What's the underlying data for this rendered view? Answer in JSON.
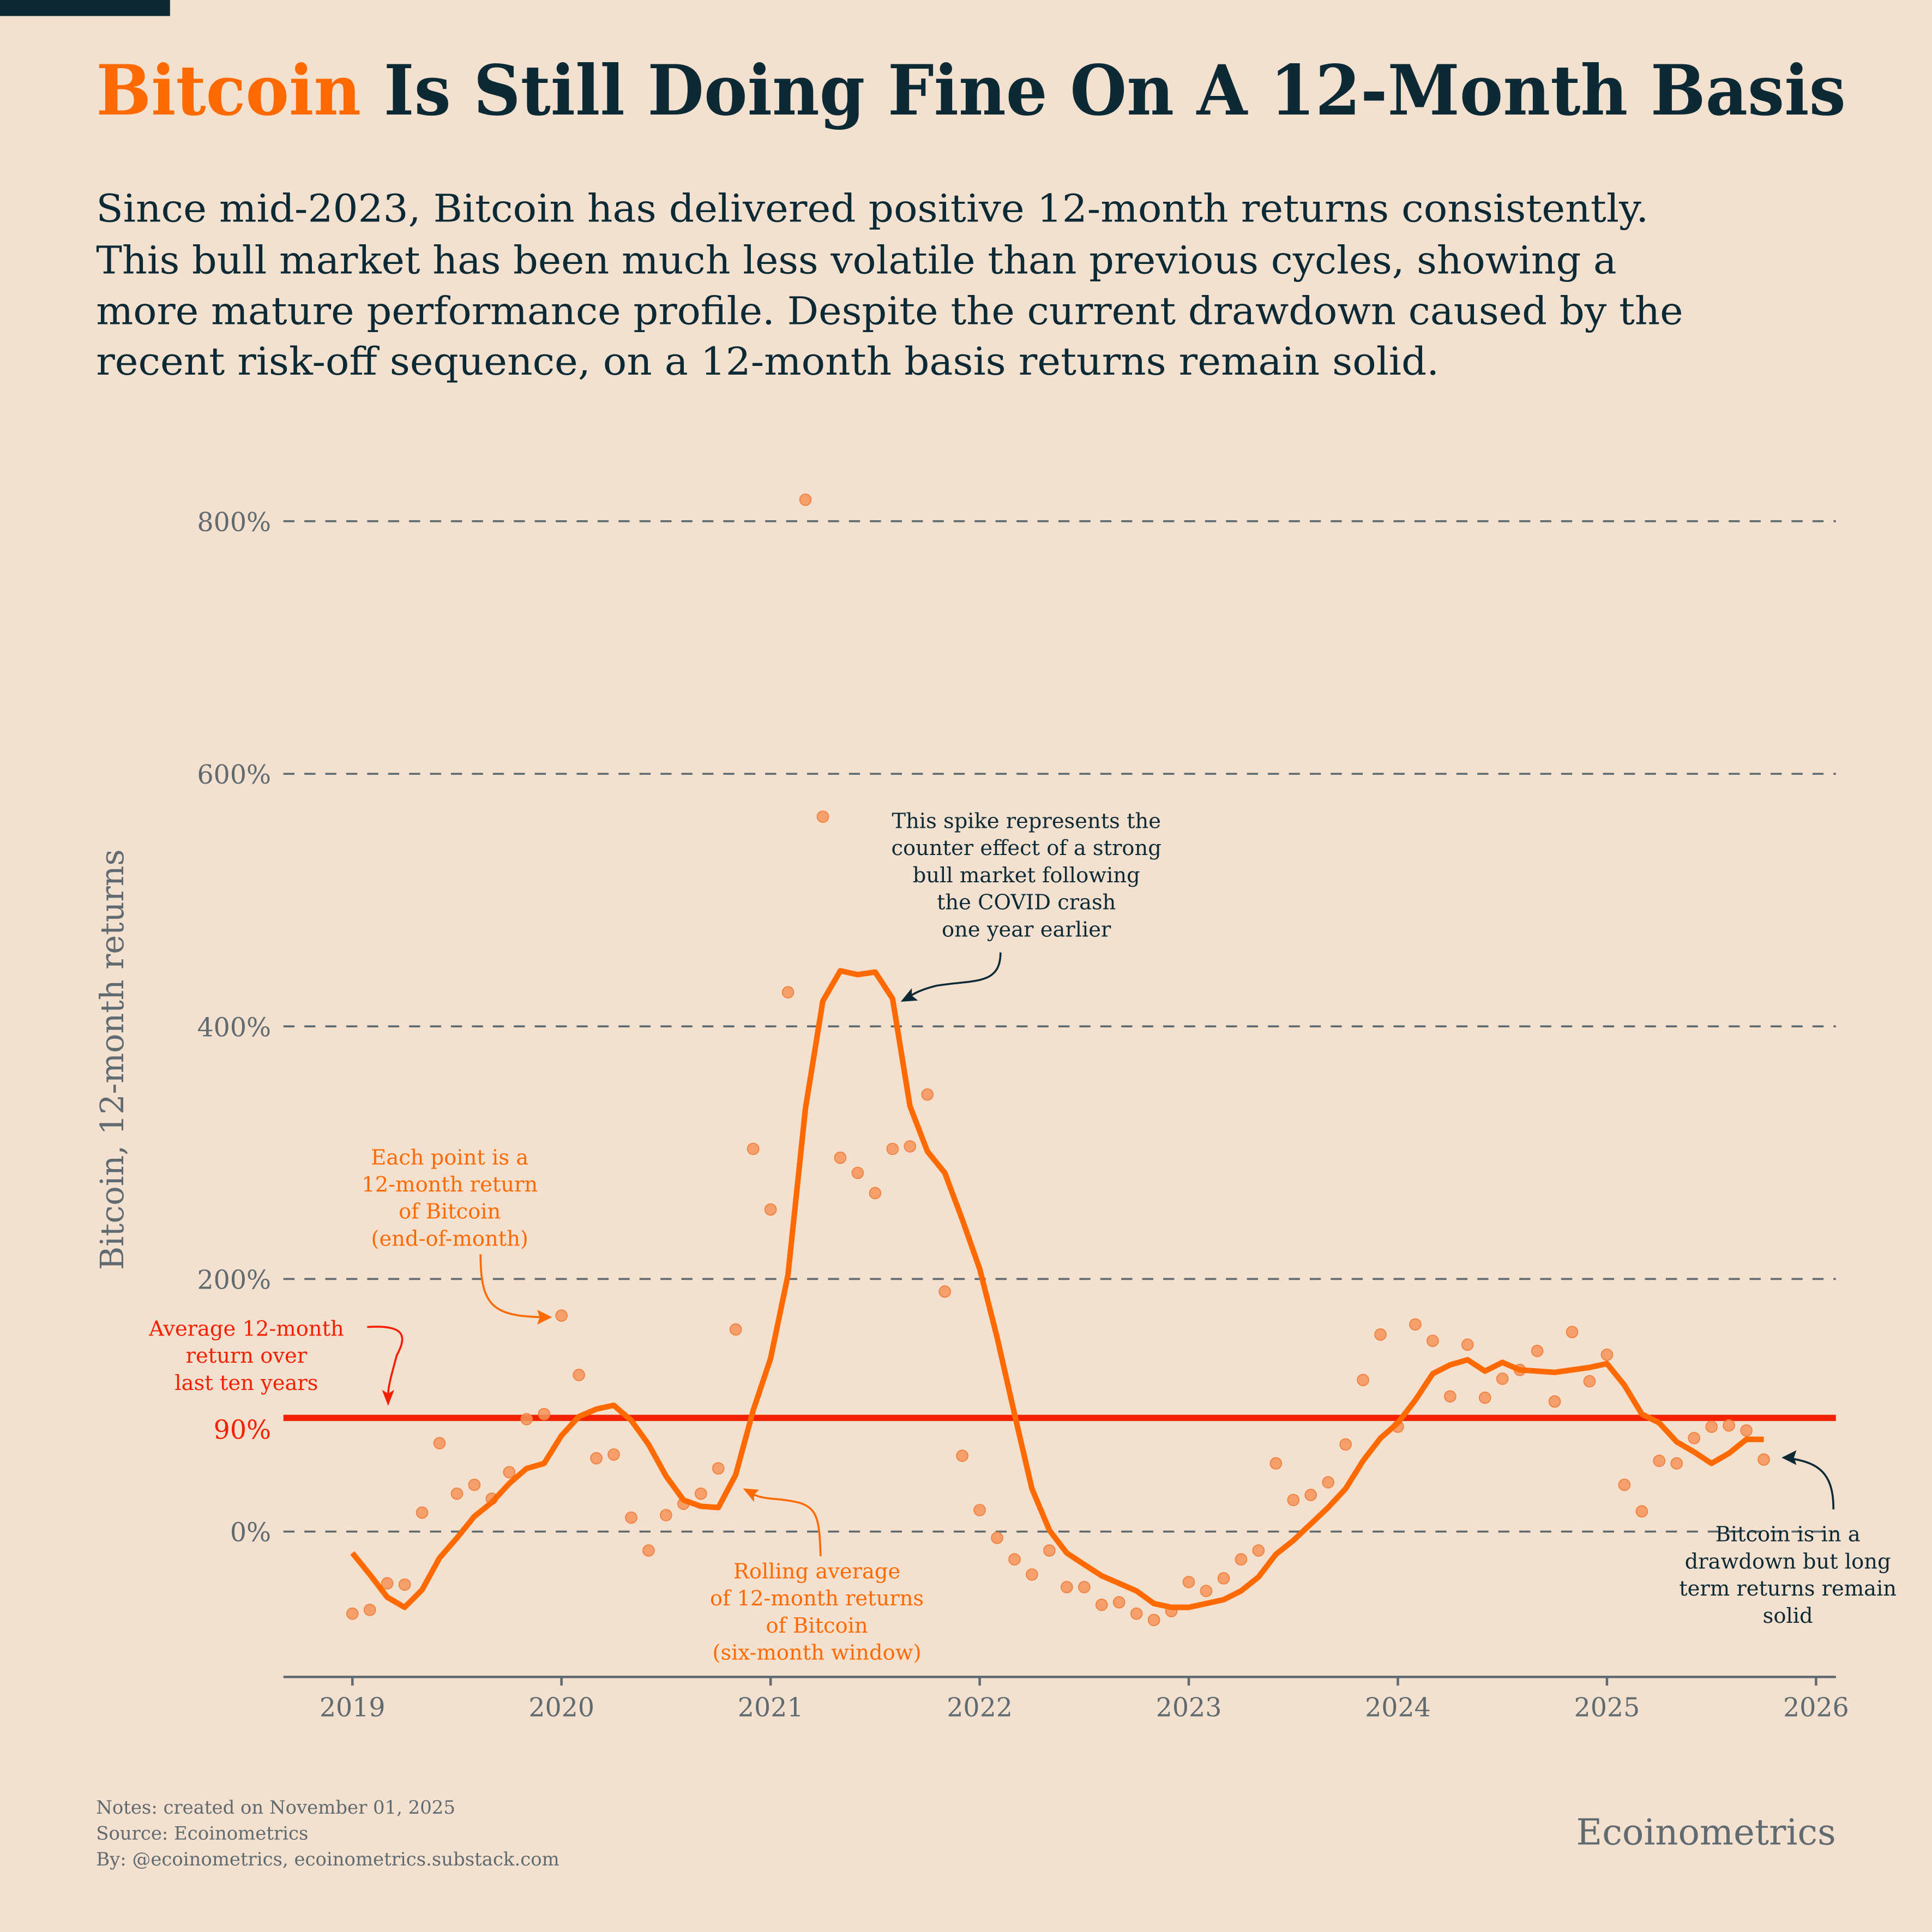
{
  "title": {
    "highlight": "Bitcoin",
    "rest": " Is Still Doing Fine On A 12-Month Basis"
  },
  "subtitle": [
    "Since mid-2023, Bitcoin has delivered positive 12-month returns consistently.",
    "This bull market has been much less volatile than previous cycles, showing a",
    "more mature performance profile. Despite the current drawdown caused by the",
    "recent risk-off sequence, on a 12-month basis returns remain solid."
  ],
  "footer": {
    "notes": "Notes: created on November 01, 2025",
    "source": "Source: Ecoinometrics",
    "by": "By: @ecoinometrics, ecoinometrics.substack.com",
    "brand": "Ecoinometrics"
  },
  "colors": {
    "background": "#f3e0cf",
    "title": "#0b2a35",
    "accent": "#ff6a00",
    "average": "#f52000",
    "points": "#f59458",
    "grid": "#5f6b70"
  },
  "annotations": {
    "points": [
      "Each point is a",
      "12-month return",
      "of Bitcoin",
      "(end-of-month)"
    ],
    "average": [
      "Average 12-month",
      "return over",
      "last ten years"
    ],
    "spike": [
      "This spike represents the",
      "counter effect of a strong",
      "bull market following",
      "the COVID crash",
      "one year earlier"
    ],
    "rolling": [
      "Rolling average",
      "of 12-month returns",
      "of Bitcoin",
      "(six-month window)"
    ],
    "drawdown": [
      "Bitcoin is in a",
      "drawdown but long",
      "term returns remain",
      "solid"
    ]
  },
  "chart_data": {
    "type": "scatter",
    "ylabel": "Bitcoin, 12-month returns",
    "xlabel": "",
    "ylim": [
      -100,
      800
    ],
    "xlim": [
      "2018-09",
      "2026-01"
    ],
    "yticks": [
      0,
      200,
      400,
      600,
      800
    ],
    "ytick_labels": [
      "0%",
      "200%",
      "400%",
      "600%",
      "800%"
    ],
    "xticks": [
      "2019",
      "2020",
      "2021",
      "2022",
      "2023",
      "2024",
      "2025",
      "2026"
    ],
    "grid": true,
    "average": {
      "value": 90,
      "label": "90%"
    },
    "months": [
      "2019-01",
      "2019-02",
      "2019-03",
      "2019-04",
      "2019-05",
      "2019-06",
      "2019-07",
      "2019-08",
      "2019-09",
      "2019-10",
      "2019-11",
      "2019-12",
      "2020-01",
      "2020-02",
      "2020-03",
      "2020-04",
      "2020-05",
      "2020-06",
      "2020-07",
      "2020-08",
      "2020-09",
      "2020-10",
      "2020-11",
      "2020-12",
      "2021-01",
      "2021-02",
      "2021-03",
      "2021-04",
      "2021-05",
      "2021-06",
      "2021-07",
      "2021-08",
      "2021-09",
      "2021-10",
      "2021-11",
      "2021-12",
      "2022-01",
      "2022-02",
      "2022-03",
      "2022-04",
      "2022-05",
      "2022-06",
      "2022-07",
      "2022-08",
      "2022-09",
      "2022-10",
      "2022-11",
      "2022-12",
      "2023-01",
      "2023-02",
      "2023-03",
      "2023-04",
      "2023-05",
      "2023-06",
      "2023-07",
      "2023-08",
      "2023-09",
      "2023-10",
      "2023-11",
      "2023-12",
      "2024-01",
      "2024-02",
      "2024-03",
      "2024-04",
      "2024-05",
      "2024-06",
      "2024-07",
      "2024-08",
      "2024-09",
      "2024-10",
      "2024-11",
      "2024-12",
      "2025-01",
      "2025-02",
      "2025-03",
      "2025-04",
      "2025-05",
      "2025-06",
      "2025-07",
      "2025-08",
      "2025-09",
      "2025-10"
    ],
    "series": [
      {
        "type": "scatter",
        "values": [
          -65,
          -62,
          -41,
          -42,
          15,
          70,
          30,
          37,
          26,
          47,
          89,
          93,
          171,
          124,
          58,
          61,
          11,
          -15,
          13,
          22,
          30,
          50,
          160,
          303,
          255,
          427,
          817,
          566,
          296,
          284,
          268,
          303,
          305,
          346,
          190,
          60,
          17,
          -5,
          -22,
          -34,
          -15,
          -44,
          -44,
          -58,
          -56,
          -65,
          -70,
          -63,
          -40,
          -47,
          -37,
          -22,
          -15,
          54,
          25,
          29,
          39,
          69,
          120,
          156,
          83,
          164,
          151,
          107,
          148,
          106,
          121,
          128,
          143,
          103,
          158,
          119,
          140,
          37,
          16,
          56,
          54,
          74,
          83,
          84,
          80,
          57
        ]
      },
      {
        "type": "line",
        "values": [
          -17,
          -34,
          -52,
          -60,
          -46,
          -21,
          -5,
          12,
          23,
          38,
          50,
          54,
          76,
          91,
          97,
          100,
          88,
          69,
          44,
          25,
          20,
          19,
          45,
          96,
          137,
          203,
          335,
          420,
          444,
          441,
          443,
          422,
          337,
          301,
          284,
          247,
          208,
          154,
          93,
          34,
          1,
          -17,
          -26,
          -35,
          -41,
          -47,
          -57,
          -60,
          -60,
          -57,
          -54,
          -47,
          -36,
          -18,
          -7,
          6,
          19,
          34,
          56,
          74,
          86,
          104,
          125,
          132,
          136,
          127,
          134,
          128,
          127,
          126,
          128,
          130,
          133,
          116,
          93,
          86,
          71,
          63,
          54,
          62,
          73,
          73
        ]
      }
    ]
  }
}
